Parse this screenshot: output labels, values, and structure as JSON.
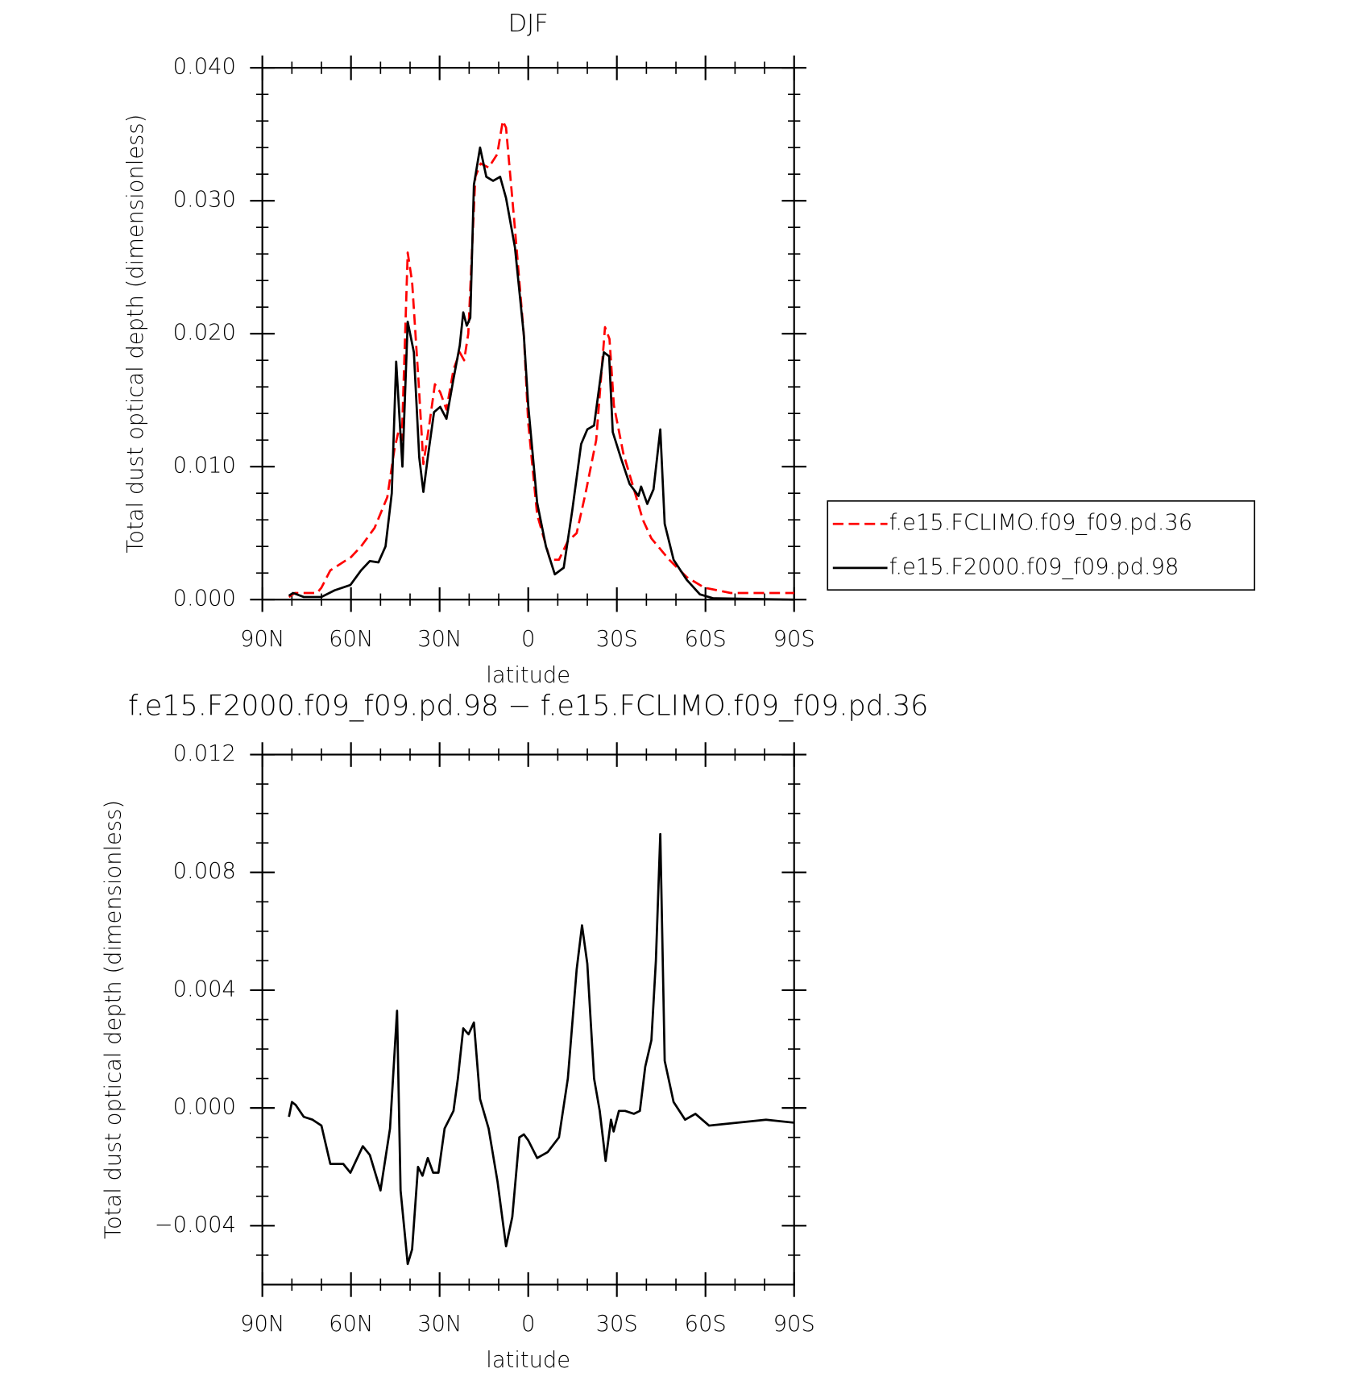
{
  "chart_data": [
    {
      "type": "line",
      "title": "DJF",
      "xlabel": "latitude",
      "ylabel": "Total dust optical depth (dimensionless)",
      "xlim": [
        90,
        -90
      ],
      "ylim": [
        0,
        0.04
      ],
      "xticks": [
        {
          "value": 90,
          "label": "90N"
        },
        {
          "value": 60,
          "label": "60N"
        },
        {
          "value": 30,
          "label": "30N"
        },
        0,
        {
          "value": -30,
          "label": "30S"
        },
        {
          "value": -60,
          "label": "60S"
        },
        {
          "value": -90,
          "label": "90S"
        }
      ],
      "yticks": [
        {
          "value": 0,
          "label": "0.000"
        },
        {
          "value": 0.01,
          "label": "0.010"
        },
        {
          "value": 0.02,
          "label": "0.020"
        },
        {
          "value": 0.03,
          "label": "0.030"
        },
        {
          "value": 0.04,
          "label": "0.040"
        }
      ],
      "legend": "right",
      "series": [
        {
          "name": "f.e15.FCLIMO.f09_f09.pd.36",
          "color": "#ff0000",
          "dash": true,
          "x": [
            81,
            79,
            71.5,
            70,
            67,
            60,
            56.6,
            52,
            47.7,
            45.3,
            44,
            42.8,
            40.8,
            39.3,
            37,
            35.5,
            33.4,
            31.6,
            29.8,
            27.7,
            25.3,
            23.2,
            21.7,
            20.3,
            19.1,
            17.9,
            16.1,
            13.4,
            10.5,
            8.6,
            7.5,
            4.5,
            1.5,
            0,
            -3,
            -7.4,
            -10.4,
            -13.4,
            -16.4,
            -19.4,
            -23,
            -26,
            -27.5,
            -29,
            -32.2,
            -35.8,
            -38.8,
            -41.7,
            -47.7,
            -53.6,
            -59.6,
            -68.5,
            -90
          ],
          "values": [
            0.0002,
            0.0005,
            0.0005,
            0.0009,
            0.0022,
            0.0032,
            0.004,
            0.0054,
            0.0077,
            0.0113,
            0.0126,
            0.012,
            0.0261,
            0.0239,
            0.016,
            0.0102,
            0.0133,
            0.0162,
            0.0156,
            0.0143,
            0.0173,
            0.0186,
            0.018,
            0.02,
            0.0259,
            0.0318,
            0.0328,
            0.0325,
            0.0335,
            0.036,
            0.0355,
            0.0279,
            0.0199,
            0.0133,
            0.0064,
            0.003,
            0.003,
            0.0044,
            0.005,
            0.008,
            0.012,
            0.0205,
            0.0196,
            0.0146,
            0.011,
            0.0083,
            0.006,
            0.0046,
            0.003,
            0.0017,
            0.0009,
            0.0005,
            0.0005
          ]
        },
        {
          "name": "f.e15.F2000.f09_f09.pd.98",
          "color": "#000000",
          "x": [
            81,
            79.6,
            76,
            70,
            65.5,
            60.2,
            56.6,
            53.6,
            50.7,
            48.3,
            46.2,
            44.7,
            42.6,
            40.8,
            38.7,
            36.9,
            35.5,
            34,
            31.9,
            29.8,
            27.7,
            25.3,
            23.2,
            22,
            20.8,
            19.6,
            18.4,
            16.3,
            14.2,
            11.9,
            9.5,
            7.5,
            4.5,
            1.5,
            0,
            -3,
            -6,
            -9,
            -12,
            -14.9,
            -17.9,
            -20,
            -22.3,
            -25.6,
            -27.4,
            -28.6,
            -31.3,
            -34.3,
            -37.3,
            -38.2,
            -40.3,
            -42.4,
            -44.7,
            -46.2,
            -49.2,
            -53.6,
            -58.1,
            -62.6,
            -90
          ],
          "values": [
            0.0003,
            0.0005,
            0.0002,
            0.0002,
            0.0007,
            0.0011,
            0.0022,
            0.0029,
            0.0028,
            0.004,
            0.008,
            0.0179,
            0.01,
            0.0209,
            0.0186,
            0.0107,
            0.0081,
            0.0107,
            0.0141,
            0.0145,
            0.0136,
            0.0166,
            0.0191,
            0.0216,
            0.0206,
            0.0212,
            0.0312,
            0.034,
            0.0318,
            0.0315,
            0.0318,
            0.0302,
            0.0265,
            0.0199,
            0.0146,
            0.0073,
            0.004,
            0.0019,
            0.0024,
            0.0067,
            0.0117,
            0.0128,
            0.0131,
            0.0186,
            0.0183,
            0.0126,
            0.0107,
            0.0087,
            0.0078,
            0.0085,
            0.0072,
            0.0083,
            0.0128,
            0.0057,
            0.003,
            0.0015,
            0.0004,
            0.0001,
            0
          ]
        }
      ]
    },
    {
      "type": "line",
      "title": "f.e15.F2000.f09_f09.pd.98 − f.e15.FCLIMO.f09_f09.pd.36",
      "xlabel": "latitude",
      "ylabel": "Total dust optical depth (dimensionless)",
      "xlim": [
        90,
        -90
      ],
      "ylim": [
        -0.006,
        0.012
      ],
      "xticks": [
        {
          "value": 90,
          "label": "90N"
        },
        {
          "value": 60,
          "label": "60N"
        },
        {
          "value": 30,
          "label": "30N"
        },
        0,
        {
          "value": -30,
          "label": "30S"
        },
        {
          "value": -60,
          "label": "60S"
        },
        {
          "value": -90,
          "label": "90S"
        }
      ],
      "yticks": [
        {
          "value": -0.004,
          "label": "−0.004"
        },
        {
          "value": 0,
          "label": "0.000"
        },
        {
          "value": 0.004,
          "label": "0.004"
        },
        {
          "value": 0.008,
          "label": "0.008"
        },
        {
          "value": 0.012,
          "label": "0.012"
        }
      ],
      "series": [
        {
          "color": "#000000",
          "x": [
            81,
            80,
            78.7,
            76,
            73,
            70,
            67,
            62.6,
            60.2,
            56,
            53.6,
            50,
            46.8,
            44.4,
            43.2,
            40.8,
            39.3,
            37.3,
            35.8,
            34,
            32.2,
            30.4,
            28.3,
            25.3,
            23.8,
            22,
            20.2,
            18.4,
            16.3,
            13.4,
            10.4,
            7.5,
            5.4,
            3,
            1.5,
            0,
            -3,
            -6.6,
            -10.4,
            -13.4,
            -16.4,
            -18.2,
            -20,
            -22.3,
            -24.2,
            -26.2,
            -28,
            -28.9,
            -30.7,
            -32.8,
            -35.8,
            -37.8,
            -39.6,
            -41.7,
            -43.2,
            -44.7,
            -46.2,
            -49.2,
            -53.1,
            -56.6,
            -61.2,
            -80.5,
            -90
          ],
          "values": [
            -0.0003,
            0.0002,
            0.0001,
            -0.0003,
            -0.0004,
            -0.0006,
            -0.0019,
            -0.0019,
            -0.0022,
            -0.0013,
            -0.0016,
            -0.0028,
            -0.0007,
            0.0033,
            -0.0028,
            -0.0053,
            -0.0048,
            -0.002,
            -0.0023,
            -0.0017,
            -0.0022,
            -0.0022,
            -0.0007,
            -0.0001,
            0.001,
            0.0027,
            0.0025,
            0.0029,
            0.0003,
            -0.0007,
            -0.0025,
            -0.0047,
            -0.0037,
            -0.001,
            -0.0009,
            -0.0011,
            -0.0017,
            -0.0015,
            -0.001,
            0.001,
            0.0047,
            0.0062,
            0.0049,
            0.001,
            -0.0001,
            -0.0018,
            -0.0004,
            -0.0008,
            -0.0001,
            -0.0001,
            -0.0002,
            -0.0001,
            0.0014,
            0.0023,
            0.005,
            0.0093,
            0.0016,
            0.0002,
            -0.0004,
            -0.0002,
            -0.0006,
            -0.0004,
            -0.0005
          ]
        }
      ]
    }
  ]
}
